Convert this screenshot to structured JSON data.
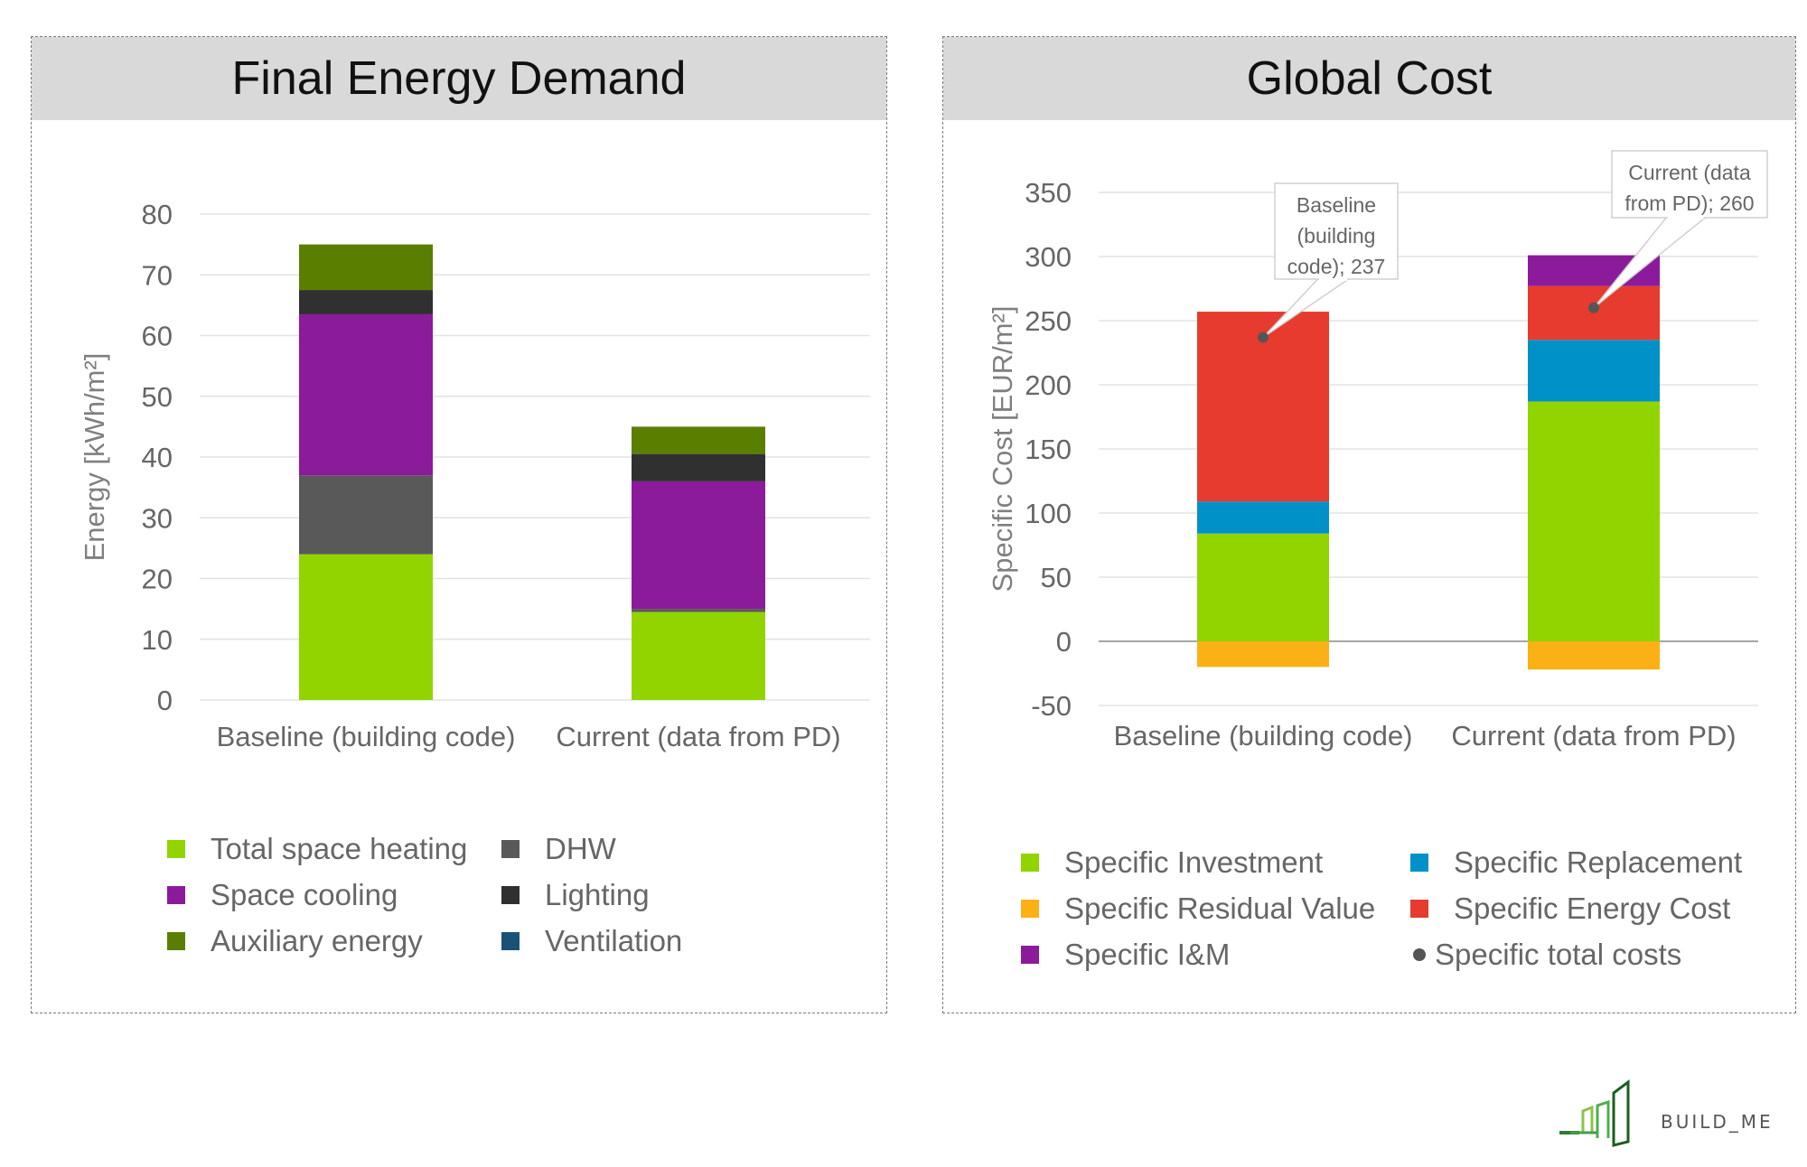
{
  "charts": [
    {
      "title": "Final Energy Demand",
      "chart_data": {
        "type": "bar",
        "stacked": true,
        "categories": [
          "Baseline (building code)",
          "Current (data from PD)"
        ],
        "ylabel": "Energy [kWh/m²]",
        "ylim": [
          0,
          80
        ],
        "yticks": [
          0,
          10,
          20,
          30,
          40,
          50,
          60,
          70,
          80
        ],
        "grid": true,
        "legend_position": "bottom",
        "series": [
          {
            "name": "Total space heating",
            "color": "#92d400",
            "values": [
              24,
              14.5
            ]
          },
          {
            "name": "DHW",
            "color": "#595959",
            "values": [
              13,
              0.5
            ]
          },
          {
            "name": "Space cooling",
            "color": "#8b1b9b",
            "values": [
              26.5,
              21
            ]
          },
          {
            "name": "Lighting",
            "color": "#303030",
            "values": [
              4,
              4.5
            ]
          },
          {
            "name": "Ventilation",
            "color": "#1a5276",
            "values": [
              0,
              0
            ]
          },
          {
            "name": "Auxiliary energy",
            "color": "#5a7f00",
            "values": [
              7.5,
              4.5
            ]
          }
        ]
      },
      "legend_order": [
        "Total space heating",
        "DHW",
        "Space cooling",
        "Lighting",
        "Auxiliary energy",
        "Ventilation"
      ]
    },
    {
      "title": "Global Cost",
      "chart_data": {
        "type": "bar",
        "stacked": true,
        "categories": [
          "Baseline (building code)",
          "Current (data from PD)"
        ],
        "ylabel": "Specific Cost [EUR/m²]",
        "ylim": [
          -50,
          350
        ],
        "yticks": [
          -50,
          0,
          50,
          100,
          150,
          200,
          250,
          300,
          350
        ],
        "grid": true,
        "legend_position": "bottom",
        "series": [
          {
            "name": "Specific Investment",
            "color": "#92d400",
            "values": [
              84,
              187
            ]
          },
          {
            "name": "Specific Replacement",
            "color": "#0091c8",
            "values": [
              25,
              48
            ]
          },
          {
            "name": "Specific Residual Value",
            "color": "#fbb116",
            "values": [
              -20,
              -22
            ]
          },
          {
            "name": "Specific Energy Cost",
            "color": "#e63b2e",
            "values": [
              148,
              42
            ]
          },
          {
            "name": "Specific I&M",
            "color": "#8b1b9b",
            "values": [
              0,
              24
            ]
          },
          {
            "name": "Specific total costs",
            "type": "point",
            "color": "#555555",
            "values": [
              237,
              260
            ]
          }
        ],
        "annotations": [
          {
            "lines": [
              "Baseline",
              "(building",
              "code); 237"
            ]
          },
          {
            "lines": [
              "Current (data",
              "from PD); 260"
            ]
          }
        ]
      },
      "legend_order": [
        "Specific Investment",
        "Specific Replacement",
        "Specific Residual Value",
        "Specific Energy Cost",
        "Specific I&M",
        "Specific total costs"
      ]
    }
  ],
  "logo": {
    "text": "BUILD_ME"
  }
}
